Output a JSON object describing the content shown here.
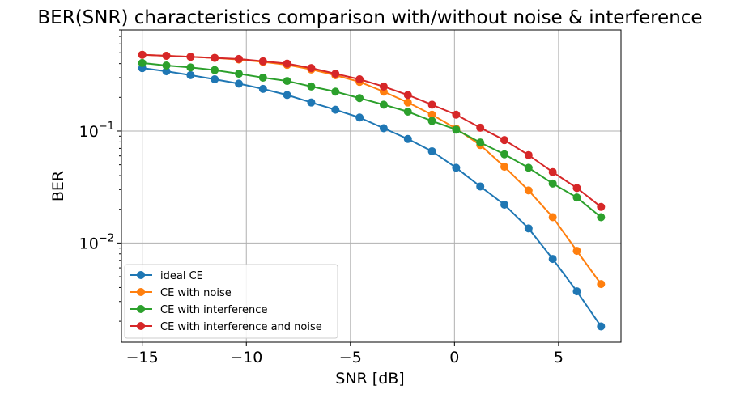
{
  "chart_data": {
    "type": "line",
    "title": "BER(SNR) characteristics comparison with/without noise & interference",
    "xlabel": "SNR [dB]",
    "ylabel": "BER",
    "yscale": "log",
    "grid": true,
    "legend_position": "lower-left",
    "xlim": [
      -16,
      8
    ],
    "ylim": [
      0.0013,
      0.8
    ],
    "xticks": [
      {
        "value": -15,
        "label": "−15"
      },
      {
        "value": -10,
        "label": "−10"
      },
      {
        "value": -5,
        "label": "−5"
      },
      {
        "value": 0,
        "label": "0"
      },
      {
        "value": 5,
        "label": "5"
      }
    ],
    "yticks": [
      {
        "value": 0.1,
        "base": "10",
        "exp": "−1"
      },
      {
        "value": 0.01,
        "base": "10",
        "exp": "−2"
      }
    ],
    "x": [
      -15,
      -13.84,
      -12.68,
      -11.52,
      -10.36,
      -9.2,
      -8.04,
      -6.88,
      -5.72,
      -4.56,
      -3.4,
      -2.24,
      -1.08,
      0.08,
      1.24,
      2.4,
      3.56,
      4.72,
      5.88,
      7.04
    ],
    "series": [
      {
        "name": "ideal CE",
        "color": "#1f77b4",
        "values": [
          0.365,
          0.342,
          0.316,
          0.29,
          0.265,
          0.238,
          0.21,
          0.18,
          0.155,
          0.132,
          0.106,
          0.085,
          0.066,
          0.047,
          0.032,
          0.022,
          0.0135,
          0.0072,
          0.0037,
          0.0018
        ]
      },
      {
        "name": "CE with noise",
        "color": "#ff7f0e",
        "values": [
          0.48,
          0.47,
          0.46,
          0.45,
          0.435,
          0.415,
          0.39,
          0.355,
          0.315,
          0.275,
          0.225,
          0.18,
          0.14,
          0.105,
          0.075,
          0.048,
          0.0295,
          0.017,
          0.0085,
          0.0043
        ]
      },
      {
        "name": "CE with interference",
        "color": "#2ca02c",
        "values": [
          0.405,
          0.385,
          0.37,
          0.35,
          0.325,
          0.3,
          0.28,
          0.25,
          0.225,
          0.197,
          0.172,
          0.149,
          0.123,
          0.103,
          0.079,
          0.062,
          0.047,
          0.034,
          0.0255,
          0.017
        ]
      },
      {
        "name": "CE with interference and noise",
        "color": "#d62728",
        "values": [
          0.48,
          0.47,
          0.46,
          0.45,
          0.44,
          0.42,
          0.4,
          0.365,
          0.325,
          0.29,
          0.25,
          0.21,
          0.172,
          0.14,
          0.107,
          0.083,
          0.061,
          0.043,
          0.031,
          0.021
        ]
      }
    ]
  }
}
